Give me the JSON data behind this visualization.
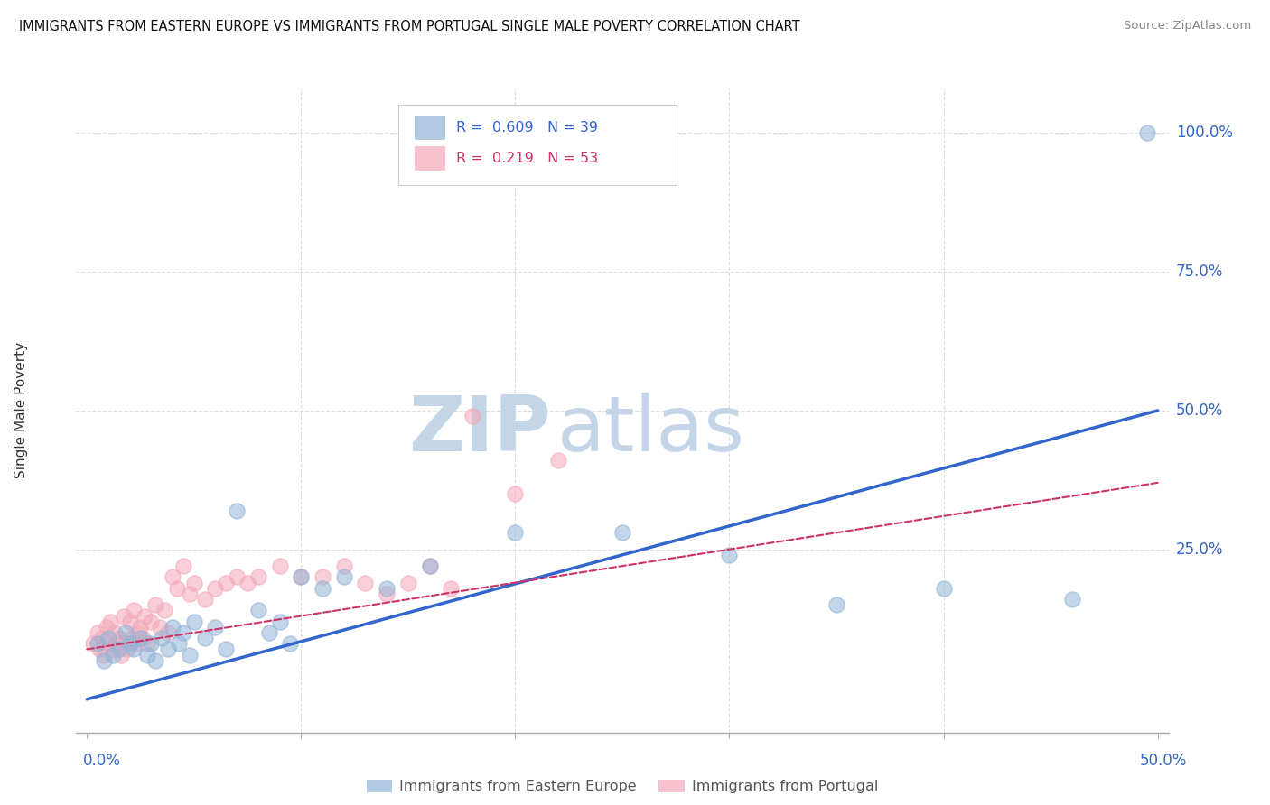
{
  "title": "IMMIGRANTS FROM EASTERN EUROPE VS IMMIGRANTS FROM PORTUGAL SINGLE MALE POVERTY CORRELATION CHART",
  "source": "Source: ZipAtlas.com",
  "ylabel": "Single Male Poverty",
  "legend_label_blue": "Immigrants from Eastern Europe",
  "legend_label_pink": "Immigrants from Portugal",
  "blue_R": 0.609,
  "blue_N": 39,
  "pink_R": 0.219,
  "pink_N": 53,
  "blue_color": "#92B4D7",
  "pink_color": "#F4A8B8",
  "blue_fill_color": "#92B4D7",
  "pink_fill_color": "#F4A8B8",
  "blue_line_color": "#3366CC",
  "pink_line_color": "#CC3366",
  "watermark_zip_color": "#C5D5E8",
  "watermark_atlas_color": "#C5D5E8",
  "label_color": "#3366CC",
  "grid_color": "#DDDDDD",
  "xlim": [
    0.0,
    0.5
  ],
  "ylim": [
    0.0,
    1.05
  ],
  "ytick_positions": [
    0.0,
    0.25,
    0.5,
    0.75,
    1.0
  ],
  "ytick_labels": [
    "",
    "25.0%",
    "50.0%",
    "75.0%",
    "100.0%"
  ],
  "xtick_positions": [
    0.0,
    0.1,
    0.2,
    0.3,
    0.4,
    0.5
  ],
  "blue_line_x": [
    0.0,
    0.5
  ],
  "blue_line_y": [
    -0.02,
    0.5
  ],
  "pink_line_x": [
    0.0,
    0.5
  ],
  "pink_line_y": [
    0.07,
    0.37
  ],
  "blue_scatter_x": [
    0.005,
    0.008,
    0.01,
    0.012,
    0.015,
    0.018,
    0.02,
    0.022,
    0.025,
    0.028,
    0.03,
    0.032,
    0.035,
    0.038,
    0.04,
    0.043,
    0.045,
    0.048,
    0.05,
    0.055,
    0.06,
    0.065,
    0.07,
    0.08,
    0.085,
    0.09,
    0.095,
    0.1,
    0.11,
    0.12,
    0.14,
    0.16,
    0.2,
    0.25,
    0.3,
    0.35,
    0.4,
    0.46,
    0.495
  ],
  "blue_scatter_y": [
    0.08,
    0.05,
    0.09,
    0.06,
    0.07,
    0.1,
    0.08,
    0.07,
    0.09,
    0.06,
    0.08,
    0.05,
    0.09,
    0.07,
    0.11,
    0.08,
    0.1,
    0.06,
    0.12,
    0.09,
    0.11,
    0.07,
    0.32,
    0.14,
    0.1,
    0.12,
    0.08,
    0.2,
    0.18,
    0.2,
    0.18,
    0.22,
    0.28,
    0.28,
    0.24,
    0.15,
    0.18,
    0.16,
    1.0
  ],
  "pink_scatter_x": [
    0.003,
    0.005,
    0.006,
    0.007,
    0.008,
    0.009,
    0.01,
    0.011,
    0.012,
    0.013,
    0.014,
    0.015,
    0.016,
    0.017,
    0.018,
    0.019,
    0.02,
    0.021,
    0.022,
    0.023,
    0.024,
    0.025,
    0.026,
    0.027,
    0.028,
    0.03,
    0.032,
    0.034,
    0.036,
    0.038,
    0.04,
    0.042,
    0.045,
    0.048,
    0.05,
    0.055,
    0.06,
    0.065,
    0.07,
    0.075,
    0.08,
    0.09,
    0.1,
    0.11,
    0.12,
    0.13,
    0.14,
    0.15,
    0.16,
    0.17,
    0.18,
    0.2,
    0.22
  ],
  "pink_scatter_y": [
    0.08,
    0.1,
    0.07,
    0.09,
    0.06,
    0.11,
    0.08,
    0.12,
    0.07,
    0.1,
    0.08,
    0.09,
    0.06,
    0.13,
    0.08,
    0.07,
    0.12,
    0.09,
    0.14,
    0.08,
    0.1,
    0.11,
    0.09,
    0.13,
    0.08,
    0.12,
    0.15,
    0.11,
    0.14,
    0.1,
    0.2,
    0.18,
    0.22,
    0.17,
    0.19,
    0.16,
    0.18,
    0.19,
    0.2,
    0.19,
    0.2,
    0.22,
    0.2,
    0.2,
    0.22,
    0.19,
    0.17,
    0.19,
    0.22,
    0.18,
    0.49,
    0.35,
    0.41
  ]
}
